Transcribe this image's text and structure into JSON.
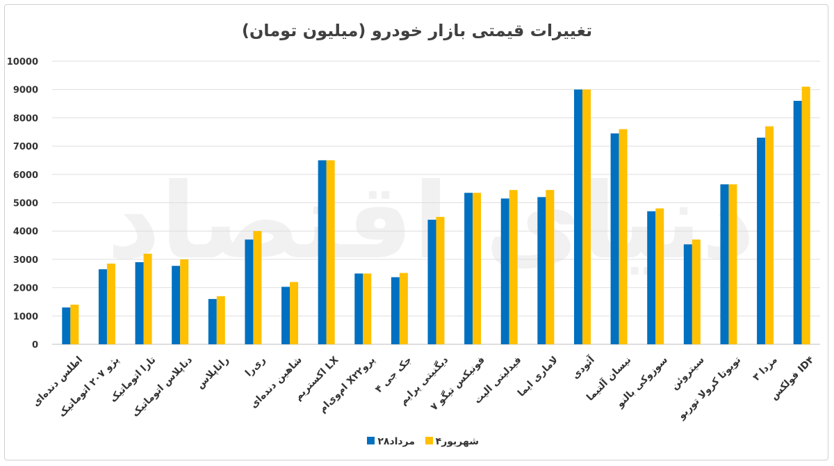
{
  "chart_data": {
    "type": "bar",
    "title": "تغییرات قیمتی بازار خودرو (میلیون تومان)",
    "xlabel": "",
    "ylabel": "",
    "ylim": [
      0,
      10000
    ],
    "yticks": [
      0,
      1000,
      2000,
      3000,
      4000,
      5000,
      6000,
      7000,
      8000,
      9000,
      10000
    ],
    "ytick_labels": [
      "0",
      "1000",
      "2000",
      "3000",
      "4000",
      "5000",
      "6000",
      "7000",
      "8000",
      "9000",
      "10000"
    ],
    "grid": true,
    "legend_position": "bottom",
    "categories": [
      "اطلس دنده‌ای",
      "پژو ۲۰۷ اتوماتیک",
      "تارا اتوماتیک",
      "دناپلاس اتوماتیک",
      "راناپلاس",
      "ری‌را",
      "شاهین دنده‌ای",
      "اکستریم LX",
      "ام‌وی‌ام X۲۲پرو",
      "جک جی ۴",
      "دیگنیتی پرایم",
      "فونیکس تیگو ۷",
      "فیدلیتی الیت",
      "لاماری ایما",
      "آئودی",
      "نیسان آلتیما",
      "سوزوکی بالنو",
      "سیتروئن",
      "تویوتا کرولا توربو",
      "مزدا ۳",
      "فولکس ID۴"
    ],
    "series": [
      {
        "name": "۲۸مرداد",
        "color": "#0070C0",
        "values": [
          1300,
          2650,
          2900,
          2770,
          1600,
          3700,
          2030,
          6500,
          2500,
          2370,
          4400,
          5350,
          5150,
          5200,
          9000,
          7450,
          4700,
          3530,
          5650,
          7300,
          8600
        ]
      },
      {
        "name": "۴شهریور",
        "color": "#FFC000",
        "values": [
          1400,
          2850,
          3200,
          3000,
          1700,
          4000,
          2200,
          6500,
          2500,
          2520,
          4500,
          5350,
          5450,
          5450,
          9000,
          7600,
          4800,
          3700,
          5650,
          7700,
          9100
        ]
      }
    ]
  },
  "watermark_text": "دنیای اقتصاد"
}
